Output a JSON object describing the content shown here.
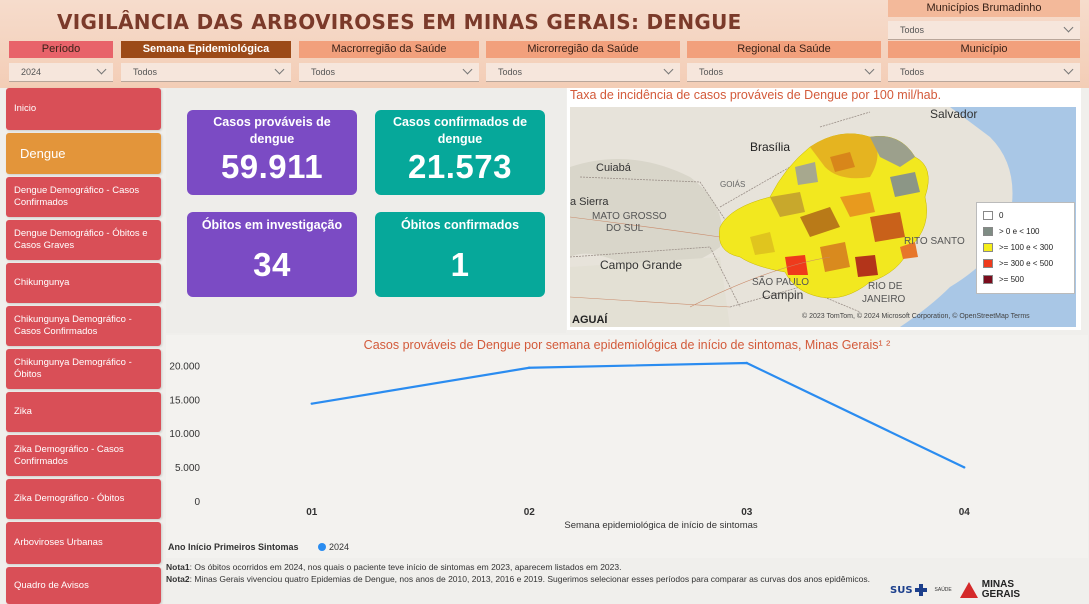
{
  "header": {
    "title": "VIGILÂNCIA DAS ARBOVIROSES EM MINAS GERAIS:  DENGUE"
  },
  "filters": {
    "brumadinho": {
      "label": "Municípios Brumadinho",
      "value": "Todos"
    },
    "periodo": {
      "label": "Período",
      "value": "2024"
    },
    "semana": {
      "label": "Semana Epidemiológica",
      "value": "Todos"
    },
    "macro": {
      "label": "Macrorregião da Saúde",
      "value": "Todos"
    },
    "micro": {
      "label": "Microrregião da Saúde",
      "value": "Todos"
    },
    "regional": {
      "label": "Regional da Saúde",
      "value": "Todos"
    },
    "municipio": {
      "label": "Município",
      "value": "Todos"
    }
  },
  "sidebar": {
    "items": [
      {
        "label": "Inicio"
      },
      {
        "label": "Dengue"
      },
      {
        "label": "Dengue Demográfico - Casos Confirmados"
      },
      {
        "label": "Dengue Demográfico - Óbitos e Casos Graves"
      },
      {
        "label": "Chikungunya"
      },
      {
        "label": "Chikungunya Demográfico - Casos Confirmados"
      },
      {
        "label": "Chikungunya Demográfico - Óbitos"
      },
      {
        "label": "Zika"
      },
      {
        "label": "Zika Demográfico - Casos Confirmados"
      },
      {
        "label": "Zika Demográfico - Óbitos"
      },
      {
        "label": "Arboviroses Urbanas"
      },
      {
        "label": "Quadro de Avisos"
      }
    ]
  },
  "kpis": {
    "provaveis": {
      "label": "Casos prováveis de dengue",
      "value": "59.911"
    },
    "confirmados": {
      "label": "Casos confirmados de dengue",
      "value": "21.573"
    },
    "obitos_inv": {
      "label": "Óbitos em investigação",
      "value": "34"
    },
    "obitos_conf": {
      "label": "Óbitos confirmados",
      "value": "1"
    }
  },
  "map": {
    "title": "Taxa de incidência de casos prováveis de Dengue por 100 mil/hab.",
    "places": {
      "salvador": "Salvador",
      "brasilia": "Brasília",
      "cuiaba": "Cuiabá",
      "goias": "GOIÁS",
      "serra": "a Sierra",
      "mato_grosso": "MATO GROSSO",
      "do_sul": "DO SUL",
      "campo_grande": "Campo Grande",
      "sao_paulo": "SÃO PAULO",
      "campinas": "Campin",
      "rio": "RIO DE",
      "janeiro": "JANEIRO",
      "espirito": "RITO SANTO"
    },
    "attribution": "© 2023 TomTom, © 2024 Microsoft Corporation, © OpenStreetMap  Terms",
    "watermark": "AGUAÍ",
    "legend": [
      {
        "label": "0",
        "color": "#ffffff"
      },
      {
        "label": "> 0 e < 100",
        "color": "#7f8c84"
      },
      {
        "label": ">= 100 e < 300",
        "color": "#f5ee1a"
      },
      {
        "label": ">= 300 e < 500",
        "color": "#ee3a1c"
      },
      {
        "label": ">= 500",
        "color": "#7a0c1d"
      }
    ]
  },
  "chart_data": {
    "type": "line",
    "title": "Casos prováveis de Dengue por semana epidemiológica de início de sintomas, Minas Gerais¹ ²",
    "xlabel": "Semana epidemiológica de início de sintomas",
    "ylabel": "",
    "categories": [
      "01",
      "02",
      "03",
      "04"
    ],
    "series": [
      {
        "name": "2024",
        "values": [
          14500,
          19800,
          20500,
          5100
        ],
        "color": "#2a8cf0"
      }
    ],
    "ylim": [
      0,
      20500
    ],
    "yticks": [
      0,
      5000,
      10000,
      15000,
      20000
    ],
    "ytick_labels": [
      "0",
      "5.000",
      "10.000",
      "15.000",
      "20.000"
    ],
    "legend_title": "Ano Início Primeiros Sintomas",
    "legend_position": "bottom-left"
  },
  "notes": {
    "nota1_label": "Nota1",
    "nota1": ": Os óbitos ocorridos em 2024, nos quais o paciente teve início de sintomas em 2023, aparecem listados em 2023.",
    "nota2_label": "Nota2",
    "nota2": ": Minas Gerais vivenciou quatro Epidemias de Dengue, nos anos de 2010, 2013, 2016 e 2019. Sugerimos selecionar esses períodos para comparar as curvas dos anos epidêmicos."
  },
  "logos": {
    "sus": "SUS",
    "saude": "SAÚDE",
    "minas": "MINAS",
    "gerais": "GERAIS"
  }
}
